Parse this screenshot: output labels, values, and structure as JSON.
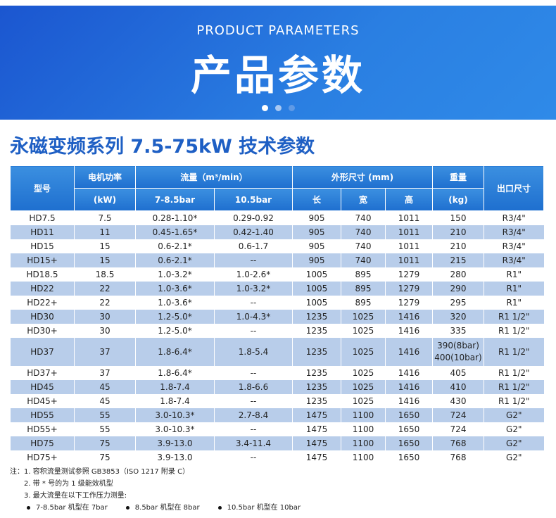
{
  "banner": {
    "subtitle": "PRODUCT PARAMETERS",
    "title": "产品参数"
  },
  "heading": "永磁变频系列 7.5-75kW 技术参数",
  "table": {
    "header": {
      "model": "型号",
      "power": "电机功率",
      "power_unit": "(kW)",
      "flow": "流量（m³/min）",
      "flow_a": "7-8.5bar",
      "flow_b": "10.5bar",
      "dims": "外形尺寸 (mm)",
      "length": "长",
      "width": "宽",
      "height": "高",
      "weight": "重量",
      "weight_unit": "(kg)",
      "outlet": "出口尺寸"
    },
    "rows": [
      [
        "HD7.5",
        "7.5",
        "0.28-1.10*",
        "0.29-0.92",
        "905",
        "740",
        "1011",
        "150",
        "R3/4\""
      ],
      [
        "HD11",
        "11",
        "0.45-1.65*",
        "0.42-1.40",
        "905",
        "740",
        "1011",
        "210",
        "R3/4\""
      ],
      [
        "HD15",
        "15",
        "0.6-2.1*",
        "0.6-1.7",
        "905",
        "740",
        "1011",
        "210",
        "R3/4\""
      ],
      [
        "HD15+",
        "15",
        "0.6-2.1*",
        "--",
        "905",
        "740",
        "1011",
        "215",
        "R3/4\""
      ],
      [
        "HD18.5",
        "18.5",
        "1.0-3.2*",
        "1.0-2.6*",
        "1005",
        "895",
        "1279",
        "280",
        "R1\""
      ],
      [
        "HD22",
        "22",
        "1.0-3.6*",
        "1.0-3.2*",
        "1005",
        "895",
        "1279",
        "290",
        "R1\""
      ],
      [
        "HD22+",
        "22",
        "1.0-3.6*",
        "--",
        "1005",
        "895",
        "1279",
        "295",
        "R1\""
      ],
      [
        "HD30",
        "30",
        "1.2-5.0*",
        "1.0-4.3*",
        "1235",
        "1025",
        "1416",
        "320",
        "R1 1/2\""
      ],
      [
        "HD30+",
        "30",
        "1.2-5.0*",
        "--",
        "1235",
        "1025",
        "1416",
        "335",
        "R1 1/2\""
      ],
      [
        "HD37",
        "37",
        "1.8-6.4*",
        "1.8-5.4",
        "1235",
        "1025",
        "1416",
        "390(8bar)\n400(10bar)",
        "R1 1/2\""
      ],
      [
        "HD37+",
        "37",
        "1.8-6.4*",
        "--",
        "1235",
        "1025",
        "1416",
        "405",
        "R1 1/2\""
      ],
      [
        "HD45",
        "45",
        "1.8-7.4",
        "1.8-6.6",
        "1235",
        "1025",
        "1416",
        "410",
        "R1 1/2\""
      ],
      [
        "HD45+",
        "45",
        "1.8-7.4",
        "--",
        "1235",
        "1025",
        "1416",
        "430",
        "R1 1/2\""
      ],
      [
        "HD55",
        "55",
        "3.0-10.3*",
        "2.7-8.4",
        "1475",
        "1100",
        "1650",
        "724",
        "G2\""
      ],
      [
        "HD55+",
        "55",
        "3.0-10.3*",
        "--",
        "1475",
        "1100",
        "1650",
        "724",
        "G2\""
      ],
      [
        "HD75",
        "75",
        "3.9-13.0",
        "3.4-11.4",
        "1475",
        "1100",
        "1650",
        "768",
        "G2\""
      ],
      [
        "HD75+",
        "75",
        "3.9-13.0",
        "--",
        "1475",
        "1100",
        "1650",
        "768",
        "G2\""
      ]
    ]
  },
  "notes": {
    "prefix": "注：",
    "items": [
      "1. 容积流量测试参照 GB3853（ISO 1217 附录 C）",
      "2. 带 * 号的为 1 级能效机型",
      "3. 最大流量在以下工作压力测量:"
    ],
    "bullets": [
      "7-8.5bar 机型在 7bar",
      "8.5bar 机型在 8bar",
      "10.5bar 机型在 10bar"
    ]
  }
}
